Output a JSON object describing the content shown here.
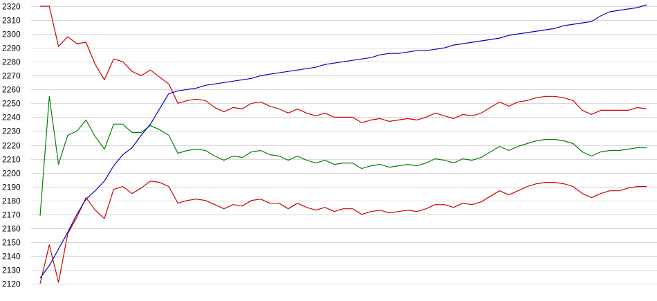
{
  "chart_data": {
    "type": "line",
    "title": "",
    "xlabel": "",
    "ylabel": "",
    "ylim": [
      2120,
      2320
    ],
    "yticks": [
      2120,
      2130,
      2140,
      2150,
      2160,
      2170,
      2180,
      2190,
      2200,
      2210,
      2220,
      2230,
      2240,
      2250,
      2260,
      2270,
      2280,
      2290,
      2300,
      2310,
      2320
    ],
    "grid": "horizontal",
    "legend": "none",
    "x": [
      0,
      1,
      2,
      3,
      4,
      5,
      6,
      7,
      8,
      9,
      10,
      11,
      12,
      13,
      14,
      15,
      16,
      17,
      18,
      19,
      20,
      21,
      22,
      23,
      24,
      25,
      26,
      27,
      28,
      29,
      30,
      31,
      32,
      33,
      34,
      35,
      36,
      37,
      38,
      39,
      40,
      41,
      42,
      43,
      44,
      45,
      46,
      47,
      48,
      49,
      50,
      51,
      52,
      53,
      54,
      55,
      56,
      57,
      58,
      59,
      60,
      61,
      62,
      63,
      64,
      65,
      66
    ],
    "series": [
      {
        "color": "#cc0000",
        "values": [
          2320,
          2320,
          2291,
          2298,
          2293,
          2294,
          2278,
          2267,
          2282,
          2280,
          2273,
          2270,
          2274,
          2269,
          2264,
          2250,
          2252,
          2253,
          2252,
          2247,
          2244,
          2247,
          2246,
          2250,
          2251,
          2248,
          2246,
          2243,
          2246,
          2243,
          2241,
          2243,
          2240,
          2240,
          2240,
          2236,
          2238,
          2239,
          2237,
          2238,
          2239,
          2238,
          2240,
          2243,
          2241,
          2239,
          2242,
          2241,
          2243,
          2247,
          2251,
          2248,
          2251,
          2252,
          2254,
          2255,
          2255,
          2254,
          2252,
          2245,
          2242,
          2245,
          2245,
          2245,
          2245,
          2247,
          2246
        ]
      },
      {
        "color": "#cc0000",
        "values": [
          2120,
          2148,
          2121,
          2156,
          2168,
          2182,
          2173,
          2167,
          2188,
          2190,
          2185,
          2189,
          2194,
          2193,
          2190,
          2178,
          2180,
          2181,
          2180,
          2177,
          2174,
          2177,
          2176,
          2180,
          2181,
          2178,
          2178,
          2174,
          2178,
          2175,
          2173,
          2175,
          2172,
          2174,
          2174,
          2170,
          2172,
          2173,
          2171,
          2172,
          2173,
          2172,
          2174,
          2177,
          2177,
          2175,
          2178,
          2177,
          2179,
          2183,
          2187,
          2184,
          2187,
          2190,
          2192,
          2193,
          2193,
          2192,
          2190,
          2185,
          2182,
          2185,
          2187,
          2187,
          2189,
          2190,
          2190
        ]
      },
      {
        "color": "#008000",
        "values": [
          2169,
          2255,
          2206,
          2227,
          2230,
          2238,
          2226,
          2217,
          2235,
          2235,
          2229,
          2229,
          2234,
          2231,
          2227,
          2214,
          2216,
          2217,
          2216,
          2212,
          2209,
          2212,
          2211,
          2215,
          2216,
          2213,
          2212,
          2209,
          2212,
          2209,
          2207,
          2209,
          2206,
          2207,
          2207,
          2203,
          2205,
          2206,
          2204,
          2205,
          2206,
          2205,
          2207,
          2210,
          2209,
          2207,
          2210,
          2209,
          2211,
          2215,
          2219,
          2216,
          2219,
          2221,
          2223,
          2224,
          2224,
          2223,
          2221,
          2215,
          2212,
          2215,
          2216,
          2216,
          2217,
          2218,
          2218
        ]
      },
      {
        "color": "#0000cc",
        "values": [
          2124,
          2133,
          2145,
          2157,
          2170,
          2181,
          2187,
          2194,
          2205,
          2213,
          2218,
          2227,
          2235,
          2246,
          2257,
          2259,
          2260,
          2261,
          2263,
          2264,
          2265,
          2266,
          2267,
          2268,
          2270,
          2271,
          2272,
          2273,
          2274,
          2275,
          2276,
          2278,
          2279,
          2280,
          2281,
          2282,
          2283,
          2285,
          2286,
          2286,
          2287,
          2288,
          2288,
          2289,
          2290,
          2292,
          2293,
          2294,
          2295,
          2296,
          2297,
          2299,
          2300,
          2301,
          2302,
          2303,
          2304,
          2306,
          2307,
          2308,
          2309,
          2313,
          2316,
          2317,
          2318,
          2319,
          2321
        ]
      }
    ]
  }
}
